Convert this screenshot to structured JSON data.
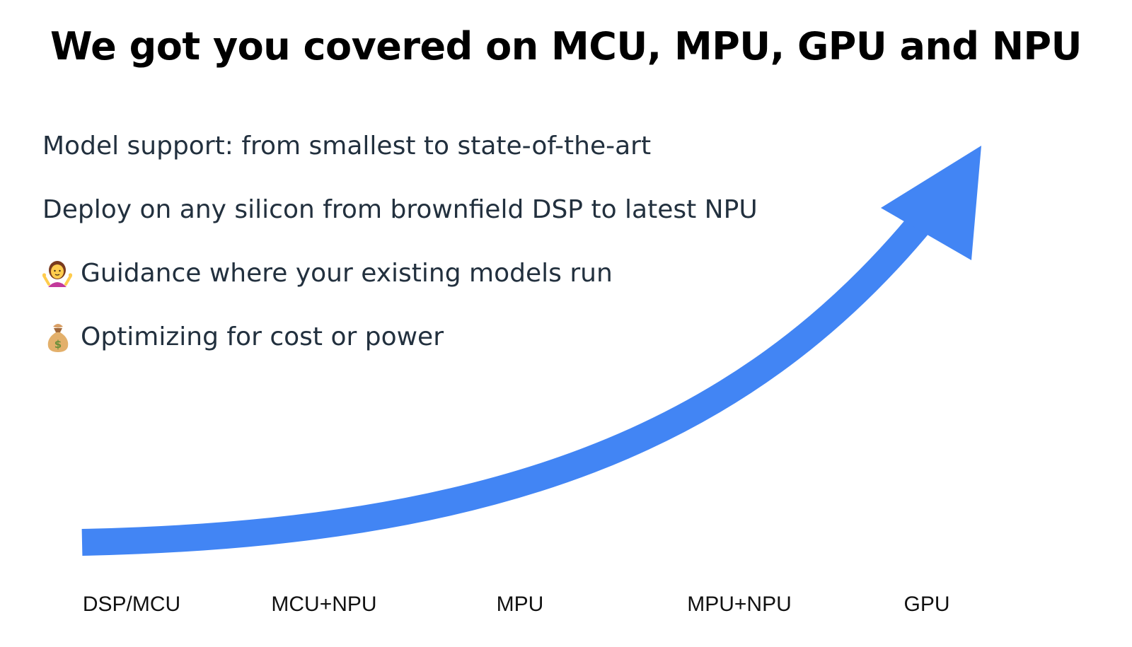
{
  "slide": {
    "title": "We got you covered on MCU, MPU, GPU and NPU",
    "bullets": [
      {
        "text": "Model support: from smallest to state-of-the-art",
        "icon": ""
      },
      {
        "text": "Deploy on any silicon from brownfield DSP to latest NPU",
        "icon": ""
      },
      {
        "text": "Guidance where your existing models run",
        "icon": "person-shrugging-icon"
      },
      {
        "text": "Optimizing for cost or power",
        "icon": "money-bag-icon"
      }
    ],
    "axis_labels": [
      "DSP/MCU",
      "MCU+NPU",
      "MPU",
      "MPU+NPU",
      "GPU"
    ],
    "colors": {
      "arrow": "#4285f4",
      "title": "#000000",
      "body_text": "#22303e"
    }
  }
}
